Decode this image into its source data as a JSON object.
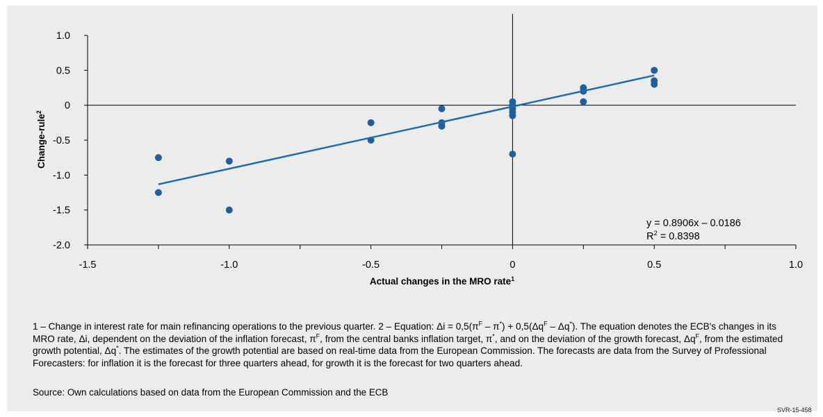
{
  "chart_data": {
    "type": "scatter",
    "xlabel": "Actual changes in the MRO rate",
    "xlabel_sup": "1",
    "ylabel": "Change-rule",
    "ylabel_sup": "2",
    "xlim": [
      -1.5,
      1.0
    ],
    "ylim": [
      -2.0,
      1.0
    ],
    "x_ticks": [
      -1.5,
      -1.0,
      -0.5,
      0,
      0.5,
      1.0
    ],
    "x_tick_labels": [
      "-1.5",
      "-1.0",
      "-0.5",
      "0",
      "0.5",
      "1.0"
    ],
    "y_ticks": [
      -2.0,
      -1.5,
      -1.0,
      -0.5,
      0,
      0.5,
      1.0
    ],
    "y_tick_labels": [
      "-2.0",
      "-1.5",
      "-1.0",
      "-0.5",
      "0",
      "0.5",
      "1.0"
    ],
    "grid": false,
    "legend": "none",
    "colors": {
      "points": "#1f5f9e",
      "trendline": "#1f6bb0",
      "axes": "#000000"
    },
    "points": [
      {
        "x": -1.25,
        "y": -0.75
      },
      {
        "x": -1.25,
        "y": -1.25
      },
      {
        "x": -1.0,
        "y": -0.8
      },
      {
        "x": -1.0,
        "y": -1.5
      },
      {
        "x": -0.5,
        "y": -0.25
      },
      {
        "x": -0.5,
        "y": -0.5
      },
      {
        "x": -0.25,
        "y": -0.05
      },
      {
        "x": -0.25,
        "y": -0.25
      },
      {
        "x": -0.25,
        "y": -0.3
      },
      {
        "x": 0,
        "y": 0.05
      },
      {
        "x": 0,
        "y": 0.0
      },
      {
        "x": 0,
        "y": -0.05
      },
      {
        "x": 0,
        "y": -0.1
      },
      {
        "x": 0,
        "y": -0.15
      },
      {
        "x": 0,
        "y": -0.7
      },
      {
        "x": 0.25,
        "y": 0.25
      },
      {
        "x": 0.25,
        "y": 0.2
      },
      {
        "x": 0.25,
        "y": 0.05
      },
      {
        "x": 0.5,
        "y": 0.5
      },
      {
        "x": 0.5,
        "y": 0.35
      },
      {
        "x": 0.5,
        "y": 0.3
      }
    ],
    "trendline": {
      "slope": 0.8906,
      "intercept": -0.0186,
      "x_start": -1.25,
      "x_end": 0.5
    },
    "equation_text": "y = 0.8906x – 0.0186",
    "r2_label": "R",
    "r2_sup": "2",
    "r2_value": " = 0.8398"
  },
  "footnote": {
    "n1": "1 – Change in interest rate for main refinancing operations to the previous quarter.  2 – Equation: Δi = 0,5(π",
    "s1": "F",
    "n2": " – π",
    "s2": "*",
    "n3": ") + 0,5(Δq",
    "s3": "F",
    "n4": " – Δq",
    "s4": "*",
    "n5": "). The equation denotes the ECB's changes in its MRO rate, Δi, dependent on the deviation of the inflation forecast, π",
    "s5": "F",
    "n6": ", from the central banks inflation target, π",
    "s6": "*",
    "n7": ", and on the deviation of the growth forecast, Δq",
    "s7": "F",
    "n8": ", from the estimated growth potential, Δq",
    "s8": "*",
    "n9": ". The estimates of the growth potential are based on real-time data from the European Commission. The forecasts are data from the Survey of Professional Forecasters: for inflation it is the forecast for three quarters ahead, for growth it is the forecast for two quarters ahead."
  },
  "source": "Source: Own calculations based on data from the European Commission and the ECB",
  "chart_code": "SVR-15-458"
}
